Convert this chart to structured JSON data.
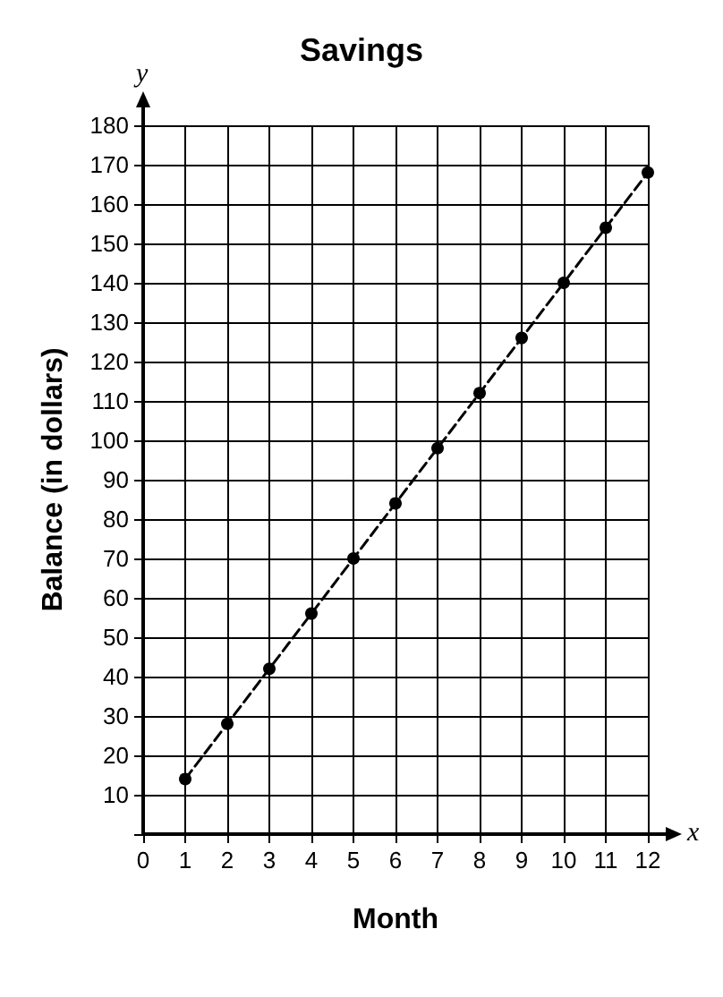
{
  "chart_data": {
    "type": "line",
    "title": "Savings",
    "xlabel": "Month",
    "ylabel": "Balance (in dollars)",
    "annotations": [
      "x",
      "y"
    ],
    "x": [
      1,
      2,
      3,
      4,
      5,
      6,
      7,
      8,
      9,
      10,
      11,
      12
    ],
    "series": [
      {
        "color": "#000000",
        "values": [
          14,
          28,
          42,
          56,
          70,
          84,
          98,
          112,
          126,
          140,
          154,
          168
        ]
      }
    ],
    "xlim": [
      0,
      12
    ],
    "xticks": [
      0,
      1,
      2,
      3,
      4,
      5,
      6,
      7,
      8,
      9,
      10,
      11,
      12
    ],
    "ylim": [
      0,
      180
    ],
    "yticks": [
      {
        "value": 0,
        "label": null
      },
      10,
      20,
      30,
      40,
      50,
      60,
      70,
      80,
      90,
      100,
      110,
      120,
      130,
      140,
      150,
      160,
      170,
      180
    ],
    "grid": true,
    "marker": "circle",
    "line_style": "dashed"
  }
}
